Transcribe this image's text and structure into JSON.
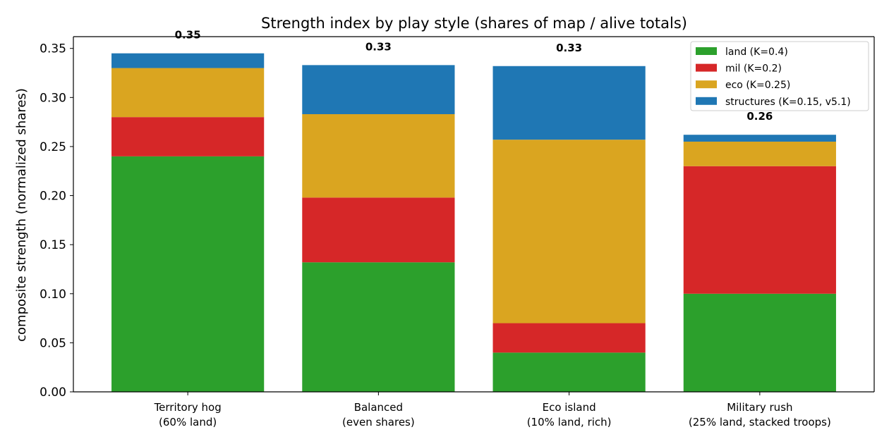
{
  "chart_data": {
    "type": "bar",
    "stacked": true,
    "title": "Strength index by play style (shares of map / alive totals)",
    "xlabel": "",
    "ylabel": "composite strength (normalized shares)",
    "ylim": [
      0,
      0.362
    ],
    "yticks": [
      "0.00",
      "0.05",
      "0.10",
      "0.15",
      "0.20",
      "0.25",
      "0.30",
      "0.35"
    ],
    "grid": false,
    "legend_position": "top-right",
    "categories": [
      [
        "Territory hog",
        "(60% land)"
      ],
      [
        "Balanced",
        "(even shares)"
      ],
      [
        "Eco island",
        "(10% land, rich)"
      ],
      [
        "Military rush",
        "(25% land, stacked troops)"
      ]
    ],
    "series": [
      {
        "name": "land (K=0.4)",
        "color": "#2ca02c",
        "values": [
          0.24,
          0.132,
          0.04,
          0.1
        ]
      },
      {
        "name": "mil (K=0.2)",
        "color": "#d62728",
        "values": [
          0.04,
          0.066,
          0.03,
          0.13
        ]
      },
      {
        "name": "eco (K=0.25)",
        "color": "#daa520",
        "values": [
          0.05,
          0.085,
          0.187,
          0.025
        ]
      },
      {
        "name": "structures (K=0.15, v5.1)",
        "color": "#1f77b4",
        "values": [
          0.015,
          0.05,
          0.075,
          0.007
        ]
      }
    ],
    "totals": [
      "0.35",
      "0.33",
      "0.33",
      "0.26"
    ]
  }
}
